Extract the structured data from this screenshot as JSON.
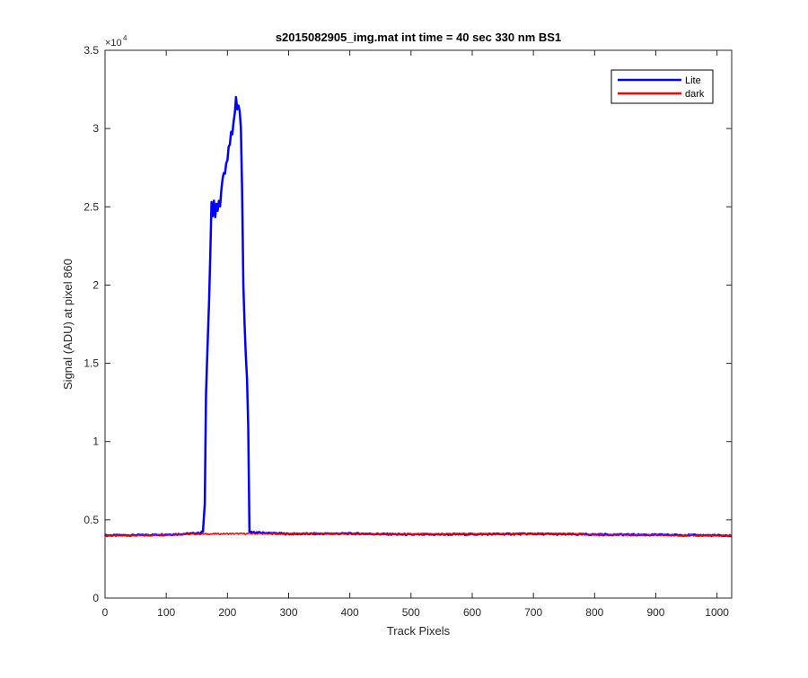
{
  "chart_data": {
    "type": "line",
    "title": "s2015082905_img.mat int time = 40 sec  330 nm BS1",
    "xlabel": "Track Pixels",
    "ylabel": "Signal (ADU) at pixel 860",
    "y_exponent_label": "×10",
    "y_exponent_power": "4",
    "xlim": [
      0,
      1024
    ],
    "ylim": [
      0,
      35000
    ],
    "xticks": [
      0,
      100,
      200,
      300,
      400,
      500,
      600,
      700,
      800,
      900,
      1000
    ],
    "xtick_labels": [
      "0",
      "100",
      "200",
      "300",
      "400",
      "500",
      "600",
      "700",
      "800",
      "900",
      "1000"
    ],
    "yticks": [
      0,
      5000,
      10000,
      15000,
      20000,
      25000,
      30000,
      35000
    ],
    "ytick_labels": [
      "0",
      "0.5",
      "1",
      "1.5",
      "2",
      "2.5",
      "3",
      "3.5"
    ],
    "grid": false,
    "legend_position": "top-right",
    "series": [
      {
        "name": "Lite",
        "color": "#0000ff",
        "points": [
          [
            0,
            4000
          ],
          [
            60,
            4020
          ],
          [
            120,
            4080
          ],
          [
            155,
            4150
          ],
          [
            160,
            4250
          ],
          [
            163,
            6000
          ],
          [
            165,
            13000
          ],
          [
            167,
            15500
          ],
          [
            170,
            19000
          ],
          [
            172,
            22000
          ],
          [
            174,
            25300
          ],
          [
            176,
            24400
          ],
          [
            178,
            25400
          ],
          [
            180,
            24300
          ],
          [
            182,
            25200
          ],
          [
            184,
            24700
          ],
          [
            186,
            25400
          ],
          [
            188,
            25000
          ],
          [
            190,
            26000
          ],
          [
            192,
            26800
          ],
          [
            194,
            27200
          ],
          [
            196,
            27100
          ],
          [
            198,
            27800
          ],
          [
            200,
            28000
          ],
          [
            202,
            28800
          ],
          [
            204,
            29000
          ],
          [
            206,
            29800
          ],
          [
            208,
            29600
          ],
          [
            210,
            30400
          ],
          [
            212,
            31000
          ],
          [
            214,
            32000
          ],
          [
            216,
            31200
          ],
          [
            218,
            31500
          ],
          [
            220,
            31100
          ],
          [
            222,
            30000
          ],
          [
            224,
            26000
          ],
          [
            226,
            20000
          ],
          [
            228,
            17500
          ],
          [
            230,
            15500
          ],
          [
            232,
            14000
          ],
          [
            234,
            11000
          ],
          [
            236,
            4200
          ],
          [
            300,
            4100
          ],
          [
            400,
            4120
          ],
          [
            500,
            4060
          ],
          [
            600,
            4080
          ],
          [
            700,
            4100
          ],
          [
            800,
            4060
          ],
          [
            900,
            4040
          ],
          [
            1000,
            4000
          ],
          [
            1024,
            3980
          ]
        ]
      },
      {
        "name": "dark",
        "color": "#ff0000",
        "points": [
          [
            0,
            3980
          ],
          [
            50,
            3990
          ],
          [
            100,
            4050
          ],
          [
            150,
            4090
          ],
          [
            200,
            4110
          ],
          [
            250,
            4120
          ],
          [
            300,
            4100
          ],
          [
            350,
            4130
          ],
          [
            400,
            4100
          ],
          [
            450,
            4070
          ],
          [
            500,
            4070
          ],
          [
            550,
            4090
          ],
          [
            600,
            4100
          ],
          [
            650,
            4080
          ],
          [
            700,
            4110
          ],
          [
            750,
            4100
          ],
          [
            800,
            4050
          ],
          [
            850,
            4040
          ],
          [
            900,
            4020
          ],
          [
            950,
            4000
          ],
          [
            1000,
            3980
          ],
          [
            1024,
            3970
          ]
        ]
      }
    ]
  }
}
